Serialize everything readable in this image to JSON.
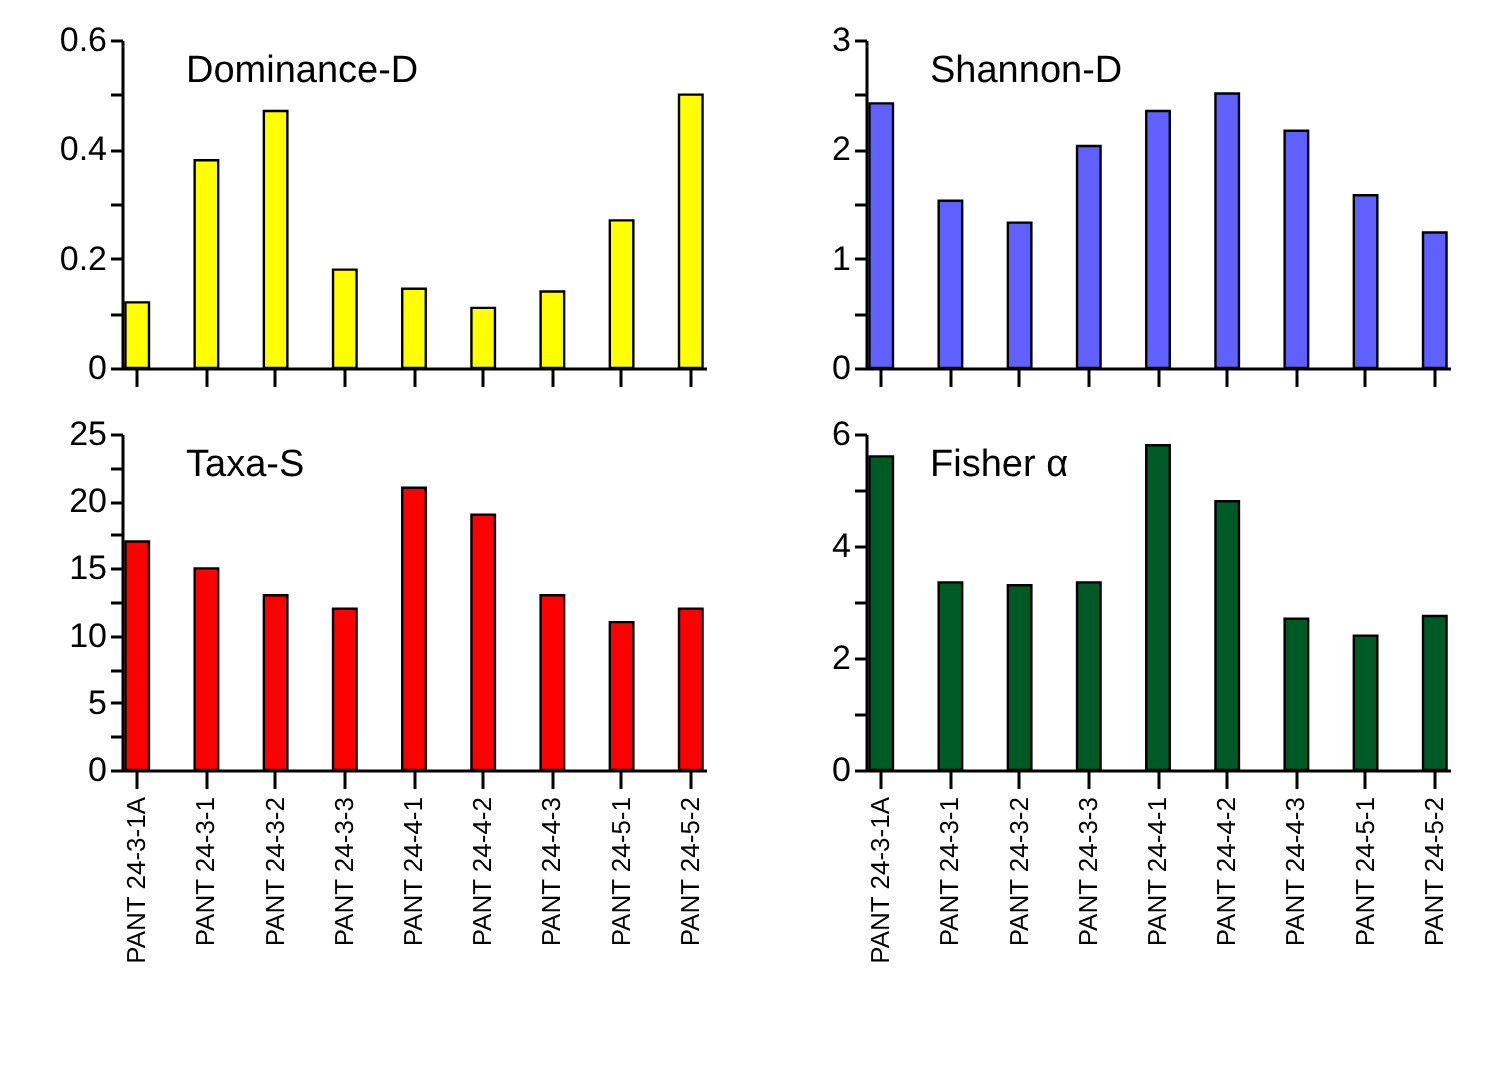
{
  "chart_data": [
    {
      "type": "bar",
      "title": "Dominance-D",
      "categories": [
        null,
        null,
        null,
        null,
        null,
        null,
        null,
        null,
        null
      ],
      "values": [
        0.12,
        0.38,
        0.47,
        0.18,
        0.145,
        0.11,
        0.14,
        0.27,
        0.5
      ],
      "color": "#ffff00",
      "ylim": [
        0,
        0.6
      ],
      "yticks": [
        0,
        {
          "value": 0.1,
          "label": null
        },
        0.2,
        {
          "value": 0.3,
          "label": null
        },
        0.4,
        {
          "value": 0.5,
          "label": null
        },
        0.6
      ],
      "tick_labels": "y"
    },
    {
      "type": "bar",
      "title": "Shannon-D",
      "categories": [
        null,
        null,
        null,
        null,
        null,
        null,
        null,
        null,
        null
      ],
      "values": [
        2.42,
        1.53,
        1.33,
        2.03,
        2.35,
        2.51,
        2.17,
        1.58,
        1.24
      ],
      "color": "#6060ff",
      "ylim": [
        0,
        3
      ],
      "yticks": [
        0,
        {
          "value": 0.5,
          "label": null
        },
        1,
        {
          "value": 1.5,
          "label": null
        },
        2,
        {
          "value": 2.5,
          "label": null
        },
        3
      ],
      "tick_labels": "y"
    },
    {
      "type": "bar",
      "title": "Taxa-S",
      "categories": [
        "PANT 24-3-1A",
        "PANT 24-3-1",
        "PANT 24-3-2",
        "PANT 24-3-3",
        "PANT 24-4-1",
        "PANT 24-4-2",
        "PANT 24-4-3",
        "PANT 24-5-1",
        "PANT 24-5-2"
      ],
      "values": [
        17,
        15,
        13,
        12,
        21,
        19,
        13,
        11,
        12
      ],
      "color": "#ff0000",
      "ylim": [
        0,
        25
      ],
      "yticks": [
        0,
        {
          "value": 2.5,
          "label": null
        },
        5,
        {
          "value": 7.5,
          "label": null
        },
        10,
        {
          "value": 12.5,
          "label": null
        },
        15,
        {
          "value": 17.5,
          "label": null
        },
        20,
        {
          "value": 22.5,
          "label": null
        },
        25
      ]
    },
    {
      "type": "bar",
      "title": "Fisher α",
      "categories": [
        "PANT 24-3-1A",
        "PANT 24-3-1",
        "PANT 24-3-2",
        "PANT 24-3-3",
        "PANT 24-4-1",
        "PANT 24-4-2",
        "PANT 24-4-3",
        "PANT 24-5-1",
        "PANT 24-5-2"
      ],
      "values": [
        5.6,
        3.35,
        3.3,
        3.35,
        5.8,
        4.8,
        2.7,
        2.4,
        2.75
      ],
      "color": "#005a26",
      "ylim": [
        0,
        6
      ],
      "yticks": [
        0,
        {
          "value": 1,
          "label": null
        },
        2,
        {
          "value": 3,
          "label": null
        },
        4,
        {
          "value": 5,
          "label": null
        },
        6
      ]
    }
  ]
}
